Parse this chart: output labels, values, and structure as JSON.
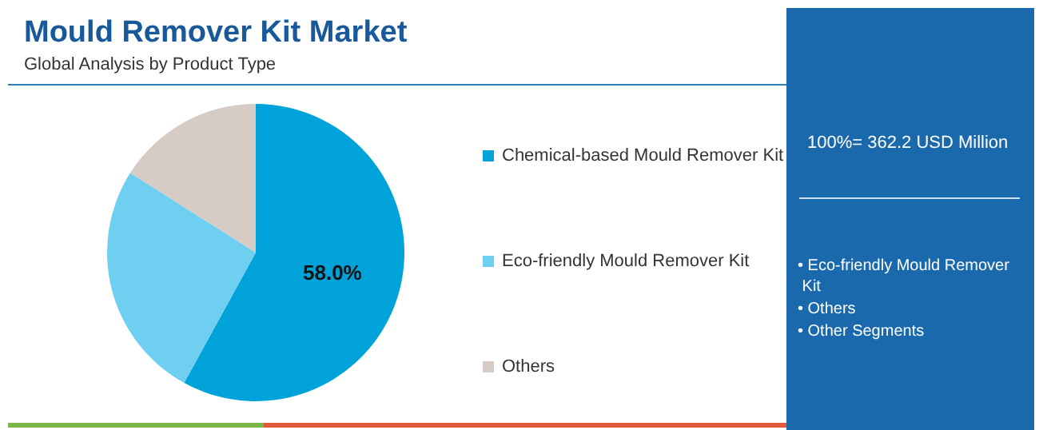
{
  "chart_data": {
    "type": "pie",
    "title": "Mould Remover Kit Market",
    "subtitle": "Global Analysis by Product Type",
    "categories": [
      "Chemical-based Mould Remover Kit",
      "Eco-friendly Mould Remover Kit",
      "Others"
    ],
    "values": [
      58.0,
      26,
      16
    ],
    "colors": [
      "#00a3d9",
      "#6fcff0",
      "#d6cbc5"
    ],
    "value_labels": [
      "58.0%",
      null,
      null
    ],
    "legend": "right",
    "annotations": [
      "100%= 362.2 USD Million",
      "• Eco-friendly Mould Remover Kit",
      "• Others",
      "• Other Segments"
    ]
  }
}
